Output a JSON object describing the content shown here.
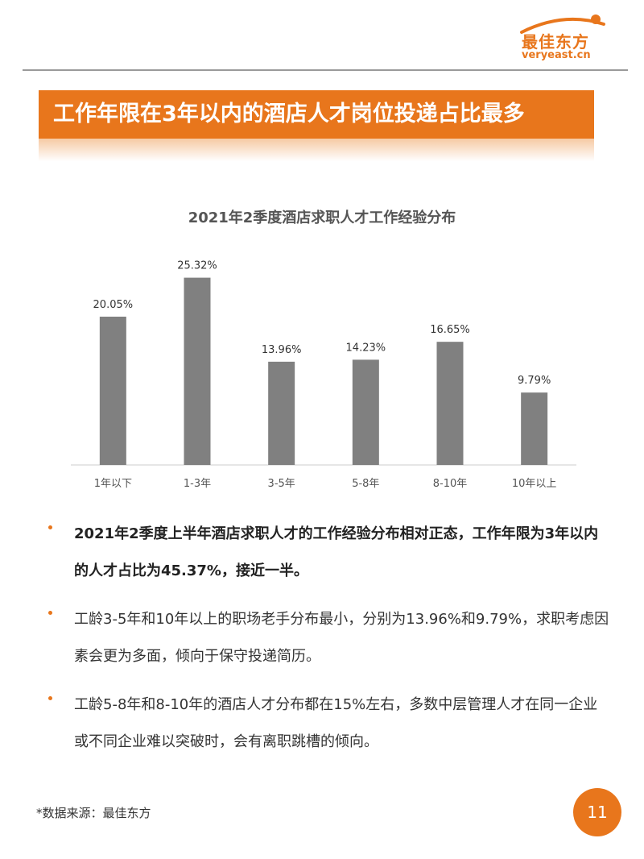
{
  "logo": {
    "name": "最佳东方",
    "url": "veryeast.cn",
    "color": "#e8761c"
  },
  "banner": {
    "title": "工作年限在3年以内的酒店人才岗位投递占比最多",
    "color": "#e8761c"
  },
  "chart_data": {
    "type": "bar",
    "title": "2021年2季度酒店求职人才工作经验分布",
    "categories": [
      "1年以下",
      "1-3年",
      "3-5年",
      "5-8年",
      "8-10年",
      "10年以上"
    ],
    "values": [
      20.05,
      25.32,
      13.96,
      14.23,
      16.65,
      9.79
    ],
    "labels": [
      "20.05%",
      "25.32%",
      "13.96%",
      "14.23%",
      "16.65%",
      "9.79%"
    ],
    "ylim": [
      0,
      28
    ],
    "grid": false,
    "bar_color": "#808080"
  },
  "bullets": [
    {
      "text": "2021年2季度上半年酒店求职人才的工作经验分布相对正态，工作年限为3年以内的人才占比为45.37%，接近一半。",
      "bold": true
    },
    {
      "text": "工龄3-5年和10年以上的职场老手分布最小，分别为13.96%和9.79%，求职考虑因素会更为多面，倾向于保守投递简历。",
      "bold": false
    },
    {
      "text": "工龄5-8年和8-10年的酒店人才分布都在15%左右，多数中层管理人才在同一企业或不同企业难以突破时，会有离职跳槽的倾向。",
      "bold": false
    }
  ],
  "footnote": "*数据来源：最佳东方",
  "page_number": "11"
}
